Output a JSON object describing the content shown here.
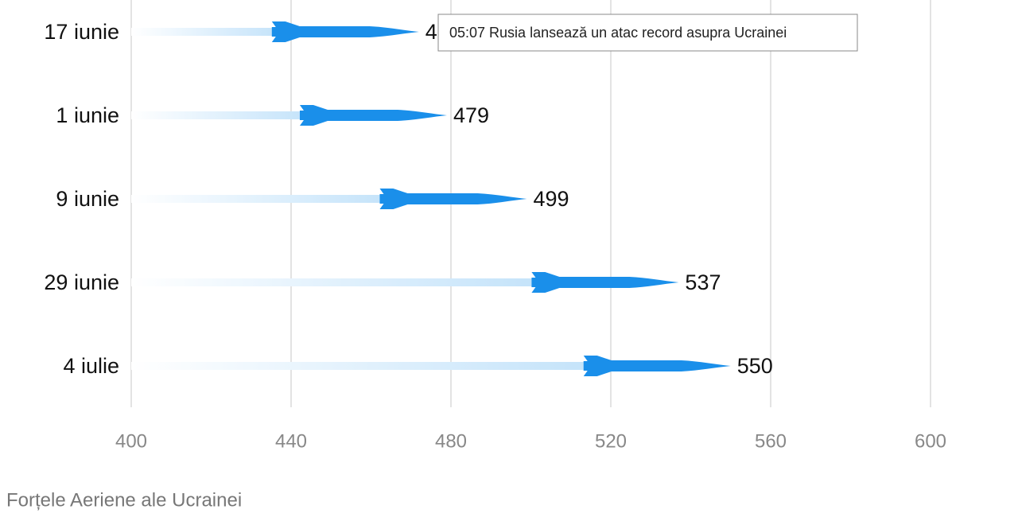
{
  "chart_data": {
    "type": "missile-bar",
    "categories": [
      "17 iunie",
      "1 iunie",
      "9 iunie",
      "29 iunie",
      "4 iulie"
    ],
    "values": [
      472,
      479,
      499,
      537,
      550
    ],
    "color": "#1a8fea",
    "xlim": [
      400,
      600
    ],
    "xticks": [
      400,
      440,
      480,
      520,
      560,
      600
    ],
    "grid": true,
    "source": "Forțele Aeriene ale Ucrainei"
  },
  "tooltip": "05:07 Rusia lansează un atac record asupra Ucrainei"
}
